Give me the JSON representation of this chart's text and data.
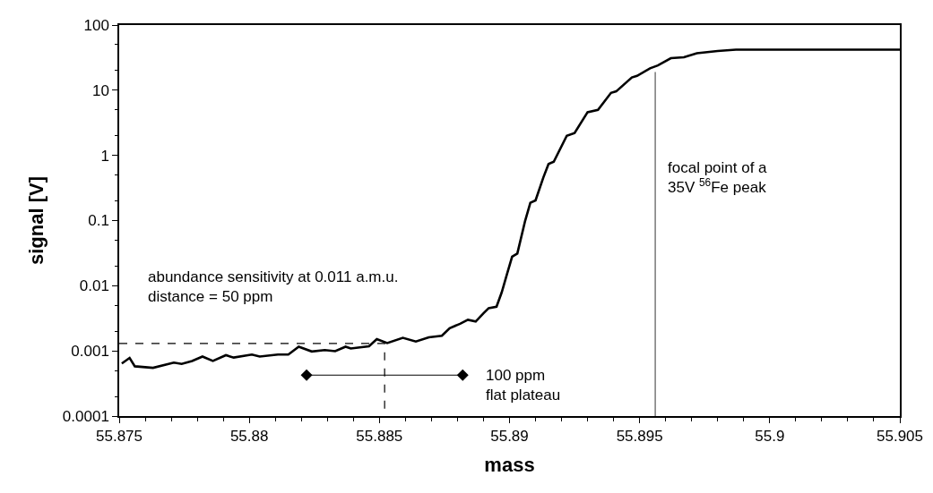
{
  "chart_data": {
    "type": "line",
    "xlabel": "mass",
    "ylabel": "signal [V]",
    "log": "y",
    "marker": "none",
    "xlim": [
      55.875,
      55.905
    ],
    "xticks": [
      55.875,
      55.88,
      55.885,
      55.89,
      55.895,
      55.9,
      55.905
    ],
    "ylim": [
      0.0001,
      100
    ],
    "yticks": [
      0.0001,
      0.001,
      0.01,
      0.1,
      1,
      10,
      100
    ],
    "series": [
      {
        "color": "#000000",
        "line_style": "solid",
        "x": [
          55.8751,
          55.8754,
          55.8756,
          55.8763,
          55.8771,
          55.8774,
          55.8778,
          55.8782,
          55.8786,
          55.8791,
          55.8794,
          55.8801,
          55.8804,
          55.8811,
          55.8815,
          55.8819,
          55.8824,
          55.8829,
          55.8833,
          55.8837,
          55.8839,
          55.8846,
          55.8849,
          55.8853,
          55.8859,
          55.8864,
          55.8869,
          55.8874,
          55.8877,
          55.8881,
          55.8884,
          55.8887,
          55.889,
          55.8892,
          55.8895,
          55.8897,
          55.8899,
          55.8901,
          55.8903,
          55.8906,
          55.8908,
          55.891,
          55.8913,
          55.8915,
          55.8917,
          55.8922,
          55.8925,
          55.893,
          55.8934,
          55.8939,
          55.8941,
          55.8947,
          55.8949,
          55.8954,
          55.8957,
          55.8962,
          55.8967,
          55.8972,
          55.898,
          55.8987,
          55.9,
          55.905
        ],
        "values": [
          0.00064,
          0.00078,
          0.00058,
          0.00055,
          0.00066,
          0.00063,
          0.0007,
          0.00082,
          0.0007,
          0.00086,
          0.00079,
          0.00088,
          0.00082,
          0.00088,
          0.00088,
          0.00116,
          0.00098,
          0.00103,
          0.00099,
          0.00116,
          0.00109,
          0.00118,
          0.00152,
          0.00132,
          0.00159,
          0.00139,
          0.00162,
          0.00171,
          0.00223,
          0.00261,
          0.003,
          0.00282,
          0.00378,
          0.00453,
          0.00476,
          0.0079,
          0.0149,
          0.028,
          0.0312,
          0.099,
          0.187,
          0.204,
          0.458,
          0.74,
          0.8,
          2.0,
          2.2,
          4.6,
          5.0,
          9.1,
          9.6,
          15.7,
          16.6,
          21.7,
          24,
          31,
          32,
          37,
          40,
          42,
          42,
          42
        ]
      },
      {
        "color": "#000000",
        "line_style": "dashed",
        "x": [
          55.875,
          55.8852,
          55.8852
        ],
        "values": [
          0.0013,
          0.0013,
          0.0001
        ]
      },
      {
        "color": "#555555",
        "line_style": "solid",
        "x": [
          55.8956,
          55.8956
        ],
        "values": [
          0.0001,
          19
        ]
      },
      {
        "color": "#000000",
        "line_style": "solid",
        "marker": "diamond",
        "x": [
          55.8822,
          55.8882
        ],
        "values": [
          0.000425,
          0.000425
        ]
      }
    ],
    "annotations": [
      "abundance sensitivity at 0.011 a.m.u.\ndistance = 50 ppm",
      "100 ppm\nflat plateau",
      "focal point of a\n35V $^{56}$Fe peak"
    ]
  }
}
